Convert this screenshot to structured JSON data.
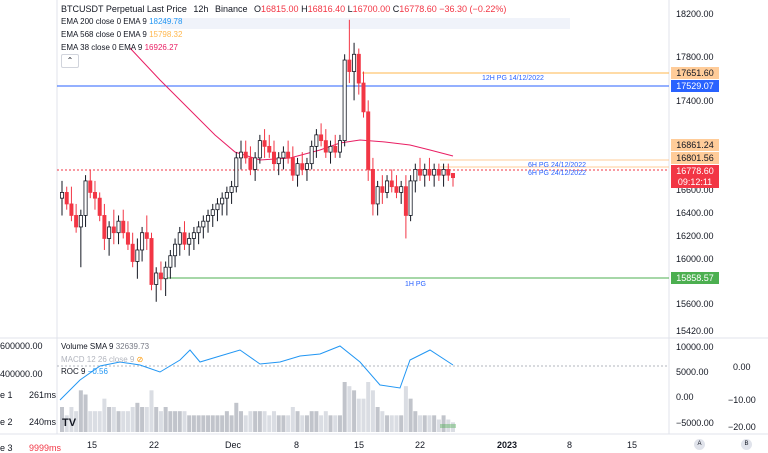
{
  "header": {
    "symbol": "BTCUSDT Perpetual Last Price",
    "interval": "12h",
    "exchange": "Binance",
    "o_label": "O",
    "o_value": "16815.00",
    "h_label": "H",
    "h_value": "16816.40",
    "l_label": "L",
    "l_value": "16700.00",
    "c_label": "C",
    "c_value": "16778.60",
    "change": "−36.30 (−0.22%)"
  },
  "indicators": [
    {
      "label": "EMA 200 close 0 EMA 9",
      "value": "18249.78",
      "color": "#2196f3"
    },
    {
      "label": "EMA 568 close 0 EMA 9",
      "value": "15798.32",
      "color": "#ffb74d"
    },
    {
      "label": "EMA 38 close 0 EMA 9",
      "value": "16926.27",
      "color": "#e91e63"
    }
  ],
  "collapse_icon": "chevron-up",
  "price_axis": {
    "ticks": [
      "18200.00",
      "17800.00",
      "17400.00",
      "16600.00",
      "16400.00",
      "16200.00",
      "16000.00",
      "15600.00",
      "15420.00"
    ],
    "markers": [
      {
        "value": "17651.60",
        "bg": "#ffcc99"
      },
      {
        "value": "17529.07",
        "bg": "#2962ff",
        "fg": "#ffffff"
      },
      {
        "value": "16861.24",
        "bg": "#ffcc99"
      },
      {
        "value": "16801.56",
        "bg": "#ffcc99"
      },
      {
        "value": "16778.60",
        "bg": "#f23645",
        "fg": "#ffffff"
      },
      {
        "value": "09:12:11",
        "bg": "#f23645",
        "fg": "#ffffff"
      },
      {
        "value": "15858.57",
        "bg": "#4caf50",
        "fg": "#ffffff"
      }
    ]
  },
  "line_notes": [
    {
      "text": "12H PG 14/12/2022",
      "color": "#2962ff"
    },
    {
      "text": "6H PG 24/12/2022",
      "color": "#2962ff"
    },
    {
      "text": "6H PG 24/12/2022",
      "color": "#2962ff"
    },
    {
      "text": "1H PG",
      "color": "#2962ff"
    }
  ],
  "sub_pane": {
    "volume_label": "Volume SMA 9",
    "volume_value": "32639.73",
    "macd_label": "MACD 12 26 close 9",
    "roc_label": "ROC 9",
    "roc_value": "−0.56",
    "left_axis": [
      "600000.00",
      "400000.00"
    ],
    "right_axis_mid": [
      "10000.00",
      "5000.00",
      "0.00",
      "−5000.00"
    ],
    "right_axis_far": [
      "0.00",
      "−10.00",
      "−20.00"
    ]
  },
  "left_stats": [
    {
      "label": "e 1",
      "value": "261ms"
    },
    {
      "label": "e 2",
      "value": "240ms"
    },
    {
      "label": "e 3",
      "value": "9999ms"
    }
  ],
  "x_axis": [
    "15",
    "22",
    "Dec",
    "8",
    "15",
    "22",
    "2023",
    "8",
    "15"
  ],
  "axis_buttons": [
    "A",
    "B"
  ],
  "chart_data": {
    "type": "candlestick",
    "candles": [
      [
        16600,
        16750,
        16450,
        16650
      ],
      [
        16650,
        16700,
        16500,
        16550
      ],
      [
        16550,
        16700,
        16400,
        16450
      ],
      [
        16450,
        16550,
        16300,
        16350
      ],
      [
        16350,
        16500,
        16000,
        16450
      ],
      [
        16450,
        16800,
        16350,
        16750
      ],
      [
        16750,
        16850,
        16600,
        16650
      ],
      [
        16650,
        16750,
        16500,
        16600
      ],
      [
        16600,
        16650,
        16400,
        16450
      ],
      [
        16450,
        16550,
        16150,
        16250
      ],
      [
        16250,
        16400,
        16100,
        16350
      ],
      [
        16350,
        16500,
        16200,
        16300
      ],
      [
        16300,
        16450,
        16200,
        16400
      ],
      [
        16400,
        16500,
        16250,
        16300
      ],
      [
        16300,
        16400,
        16150,
        16200
      ],
      [
        16200,
        16300,
        16000,
        16050
      ],
      [
        16050,
        16250,
        15900,
        16150
      ],
      [
        16150,
        16350,
        16050,
        16300
      ],
      [
        16300,
        16450,
        16150,
        16250
      ],
      [
        16250,
        16300,
        15800,
        15850
      ],
      [
        15850,
        16000,
        15700,
        15950
      ],
      [
        15950,
        16050,
        15800,
        15900
      ],
      [
        15900,
        16050,
        15750,
        16000
      ],
      [
        16000,
        16150,
        15900,
        16100
      ],
      [
        16100,
        16250,
        16000,
        16200
      ],
      [
        16200,
        16350,
        16100,
        16300
      ],
      [
        16300,
        16400,
        16150,
        16200
      ],
      [
        16200,
        16300,
        16100,
        16250
      ],
      [
        16250,
        16350,
        16150,
        16300
      ],
      [
        16300,
        16400,
        16200,
        16350
      ],
      [
        16350,
        16450,
        16250,
        16400
      ],
      [
        16400,
        16500,
        16300,
        16450
      ],
      [
        16450,
        16550,
        16350,
        16500
      ],
      [
        16500,
        16600,
        16400,
        16550
      ],
      [
        16550,
        16650,
        16450,
        16600
      ],
      [
        16600,
        16700,
        16450,
        16650
      ],
      [
        16650,
        16750,
        16550,
        16700
      ],
      [
        16700,
        17000,
        16650,
        16950
      ],
      [
        16950,
        17100,
        16850,
        17000
      ],
      [
        17000,
        17100,
        16900,
        16950
      ],
      [
        16950,
        17050,
        16800,
        16850
      ],
      [
        16850,
        17000,
        16750,
        16950
      ],
      [
        16950,
        17150,
        16900,
        17100
      ],
      [
        17100,
        17200,
        16950,
        17050
      ],
      [
        17050,
        17150,
        16950,
        17000
      ],
      [
        17000,
        17100,
        16850,
        16900
      ],
      [
        16900,
        17000,
        16800,
        16950
      ],
      [
        16950,
        17050,
        16850,
        17000
      ],
      [
        17000,
        17100,
        16900,
        16950
      ],
      [
        16950,
        17050,
        16750,
        16800
      ],
      [
        16800,
        16950,
        16700,
        16900
      ],
      [
        16900,
        17000,
        16800,
        16850
      ],
      [
        16850,
        16950,
        16750,
        16900
      ],
      [
        16900,
        17100,
        16850,
        17050
      ],
      [
        17050,
        17200,
        16950,
        17150
      ],
      [
        17150,
        17250,
        17050,
        17100
      ],
      [
        17100,
        17200,
        16950,
        17000
      ],
      [
        17000,
        17100,
        16900,
        17050
      ],
      [
        17050,
        17150,
        16950,
        17000
      ],
      [
        17000,
        17150,
        16950,
        17100
      ],
      [
        17100,
        17850,
        17050,
        17800
      ],
      [
        17800,
        18150,
        17600,
        17700
      ],
      [
        17700,
        17950,
        17450,
        17850
      ],
      [
        17850,
        17900,
        17500,
        17600
      ],
      [
        17600,
        17700,
        17300,
        17350
      ],
      [
        17350,
        17450,
        16750,
        16850
      ],
      [
        16850,
        16950,
        16450,
        16550
      ],
      [
        16550,
        16750,
        16450,
        16700
      ],
      [
        16700,
        16800,
        16550,
        16650
      ],
      [
        16650,
        16800,
        16600,
        16750
      ],
      [
        16750,
        16850,
        16650,
        16700
      ],
      [
        16700,
        16800,
        16600,
        16650
      ],
      [
        16650,
        16750,
        16550,
        16700
      ],
      [
        16700,
        16800,
        16250,
        16450
      ],
      [
        16450,
        16800,
        16400,
        16750
      ],
      [
        16750,
        16900,
        16650,
        16850
      ],
      [
        16850,
        16950,
        16750,
        16800
      ],
      [
        16800,
        16900,
        16700,
        16850
      ],
      [
        16850,
        16950,
        16750,
        16800
      ],
      [
        16800,
        16900,
        16700,
        16850
      ],
      [
        16850,
        16900,
        16750,
        16800
      ],
      [
        16800,
        16900,
        16700,
        16850
      ],
      [
        16850,
        16900,
        16750,
        16800
      ],
      [
        16815,
        16816.4,
        16700,
        16778.6
      ]
    ]
  }
}
